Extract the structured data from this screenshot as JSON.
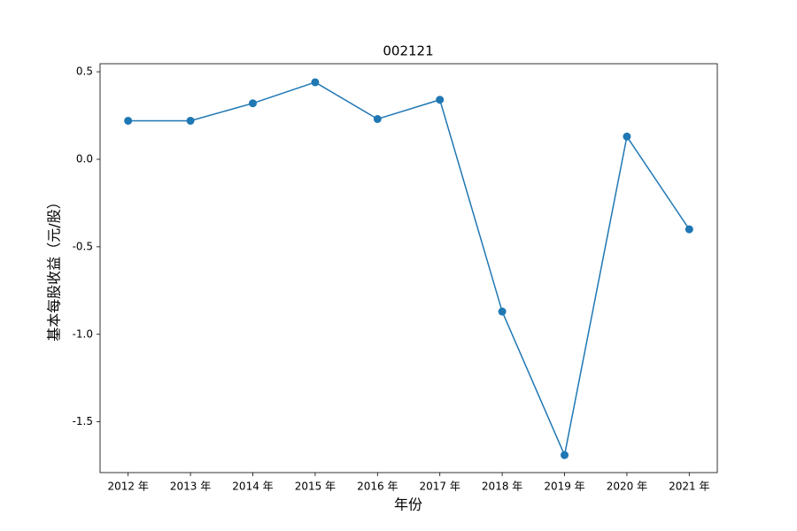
{
  "chart_data": {
    "type": "line",
    "title": "002121",
    "x_label": "年份",
    "y_label": "基本每股收益（元/股）",
    "categories": [
      "2012 年",
      "2013 年",
      "2014 年",
      "2015 年",
      "2016 年",
      "2017 年",
      "2018 年",
      "2019 年",
      "2020 年",
      "2021 年"
    ],
    "values": [
      0.22,
      0.22,
      0.32,
      0.44,
      0.23,
      0.34,
      -0.87,
      -1.69,
      0.13,
      -0.4
    ],
    "color": "#1f77b4",
    "ylim": [
      -1.79,
      0.546
    ],
    "yticks": [
      -1.5,
      {
        "value": -1,
        "label": "-1.0"
      },
      -0.5,
      {
        "value": 0,
        "label": "0.0"
      },
      0.5
    ]
  }
}
